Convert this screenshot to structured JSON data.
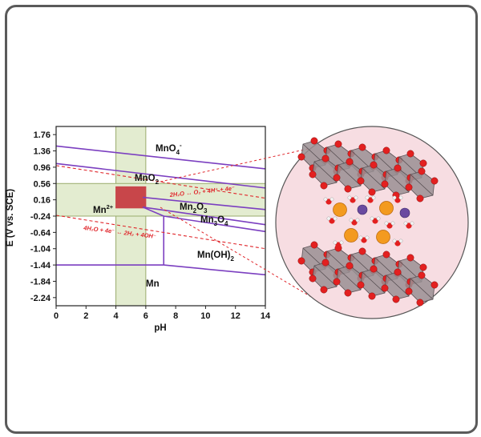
{
  "figure": {
    "x_axis_label": "pH",
    "y_axis_label": "E (V vs. SCE)",
    "x_ticks": [
      "0",
      "2",
      "4",
      "6",
      "8",
      "10",
      "12",
      "14"
    ],
    "y_ticks": [
      "1.76",
      "1.36",
      "0.96",
      "0.56",
      "0.16",
      "-0.24",
      "-0.64",
      "-1.04",
      "-1.44",
      "-1.84",
      "-2.24"
    ],
    "species": {
      "mno4": "MnO",
      "mno4_sub": "4",
      "mno4_sup": "-",
      "mno2": "MnO",
      "mno2_sub": "2",
      "mn2plus": "Mn",
      "mn2plus_sup": "2+",
      "mn2o3_a": "Mn",
      "mn2o3_sub1": "2",
      "mn2o3_b": "O",
      "mn2o3_sub2": "3",
      "mn3o4_a": "Mn",
      "mn3o4_sub1": "3",
      "mn3o4_b": "O",
      "mn3o4_sub2": "4",
      "mnoh2": "Mn(OH)",
      "mnoh2_sub": "2",
      "mn": "Mn"
    },
    "oxygen_line_label": "2H₂O ↔ O₂ + 4H⁺ + 4e⁻",
    "hydrogen_line_label": "4H₂O + 4e⁻ ↔ 2H₂ + 4OH⁻",
    "colors": {
      "boundary": "#7b3fc0",
      "water_lines": "#e0262b",
      "window_fill": "#e3ecd0",
      "window_border": "#9aab6c",
      "operating_region": "#c8464a",
      "circle_fill": "#f7dde2",
      "octahedra": "#9a8f93",
      "oxygen": "#e32020",
      "cation": "#f39a1f",
      "anion": "#6a4aa0"
    }
  },
  "chart_data": {
    "type": "diagram",
    "xlabel": "pH",
    "ylabel": "E (V vs. SCE)",
    "xlim": [
      0,
      14
    ],
    "ylim": [
      -2.44,
      1.96
    ],
    "boundaries": [
      {
        "from": [
          0,
          1.48
        ],
        "to": [
          14,
          0.92
        ]
      },
      {
        "from": [
          0,
          1.05
        ],
        "to": [
          14,
          0.45
        ]
      },
      {
        "from": [
          5.8,
          0.22
        ],
        "to": [
          14,
          -0.08
        ]
      },
      {
        "from": [
          5.8,
          -0.02
        ],
        "to": [
          14,
          -0.45
        ]
      },
      {
        "from": [
          5.8,
          -0.02
        ],
        "to": [
          7.2,
          -0.24
        ]
      },
      {
        "from": [
          7.2,
          -0.24
        ],
        "to": [
          14,
          -0.62
        ]
      },
      {
        "from": [
          7.2,
          -0.24
        ],
        "to": [
          7.2,
          -1.44
        ]
      },
      {
        "from": [
          0,
          -1.44
        ],
        "to": [
          7.2,
          -1.44
        ]
      },
      {
        "from": [
          7.2,
          -1.44
        ],
        "to": [
          14,
          -1.68
        ]
      }
    ],
    "water_lines": [
      {
        "name": "O2 evolution",
        "from": [
          0,
          1.0
        ],
        "to": [
          14,
          0.2
        ]
      },
      {
        "name": "H2 evolution",
        "from": [
          0,
          -0.22
        ],
        "to": [
          14,
          -1.04
        ]
      }
    ],
    "stability_window": {
      "ph": [
        4,
        6
      ],
      "E": [
        -0.24,
        0.56
      ]
    },
    "operating_region": {
      "ph": [
        4,
        6
      ],
      "E": [
        -0.04,
        0.48
      ]
    }
  }
}
